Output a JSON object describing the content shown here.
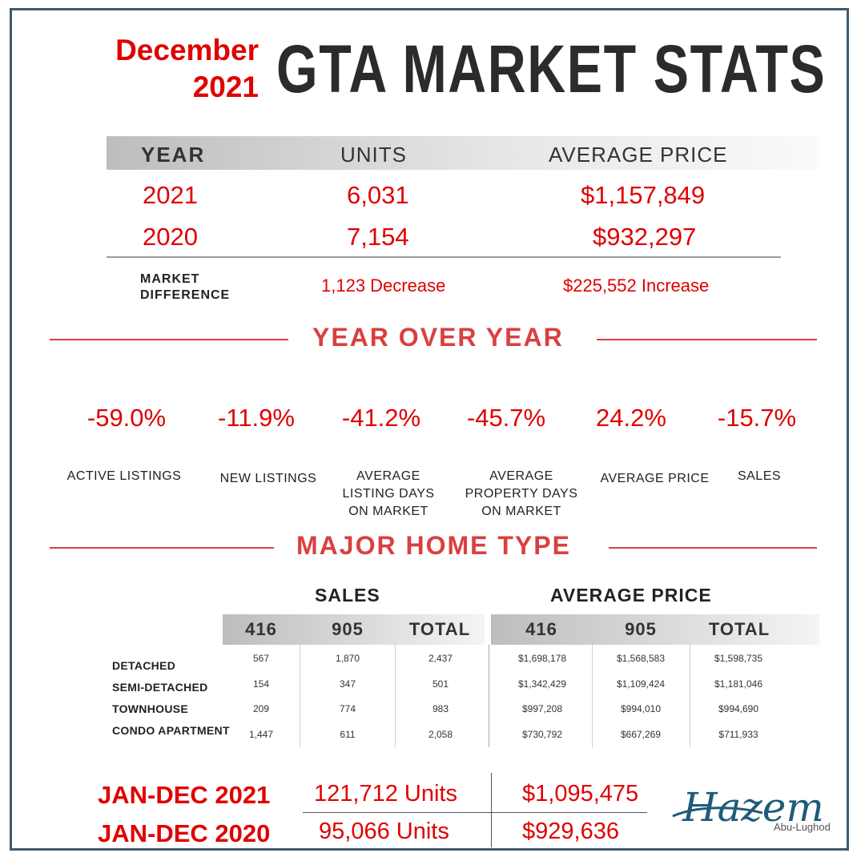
{
  "header": {
    "month": "December",
    "year": "2021",
    "title": "GTA MARKET STATS"
  },
  "summary": {
    "headers": [
      "YEAR",
      "UNITS",
      "AVERAGE PRICE"
    ],
    "rows": [
      {
        "year": "2021",
        "units": "6,031",
        "price": "$1,157,849"
      },
      {
        "year": "2020",
        "units": "7,154",
        "price": "$932,297"
      }
    ],
    "difference": {
      "label_line1": "MARKET",
      "label_line2": "DIFFERENCE",
      "units": "1,123 Decrease",
      "price": "$225,552 Increase"
    }
  },
  "yoy": {
    "title": "YEAR OVER YEAR",
    "stats": [
      {
        "value": "-59.0%",
        "label": [
          "ACTIVE LISTINGS"
        ]
      },
      {
        "value": "-11.9%",
        "label": [
          "NEW LISTINGS"
        ]
      },
      {
        "value": "-41.2%",
        "label": [
          "AVERAGE",
          "LISTING DAYS",
          "ON MARKET"
        ]
      },
      {
        "value": "-45.7%",
        "label": [
          "AVERAGE",
          "PROPERTY DAYS",
          "ON MARKET"
        ]
      },
      {
        "value": "24.2%",
        "label": [
          "AVERAGE PRICE"
        ]
      },
      {
        "value": "-15.7%",
        "label": [
          "SALES"
        ]
      }
    ]
  },
  "home_type": {
    "title": "MAJOR HOME TYPE",
    "sales_title": "SALES",
    "price_title": "AVERAGE PRICE",
    "columns": [
      "416",
      "905",
      "TOTAL",
      "416",
      "905",
      "TOTAL"
    ],
    "rows": [
      {
        "type": "DETACHED",
        "values": [
          "567",
          "1,870",
          "2,437",
          "$1,698,178",
          "$1,568,583",
          "$1,598,735"
        ]
      },
      {
        "type": "SEMI-DETACHED",
        "values": [
          "154",
          "347",
          "501",
          "$1,342,429",
          "$1,109,424",
          "$1,181,046"
        ]
      },
      {
        "type": "TOWNHOUSE",
        "values": [
          "209",
          "774",
          "983",
          "$997,208",
          "$994,010",
          "$994,690"
        ]
      },
      {
        "type": "CONDO APARTMENT",
        "values": [
          "1,447",
          "611",
          "2,058",
          "$730,792",
          "$667,269",
          "$711,933"
        ]
      }
    ]
  },
  "footer": [
    {
      "label": "JAN-DEC 2021",
      "units": "121,712 Units",
      "price": "$1,095,475"
    },
    {
      "label": "JAN-DEC 2020",
      "units": "95,066 Units",
      "price": "$929,636"
    }
  ],
  "signature": {
    "name": "Hazem",
    "surname": "Abu-Lughod"
  },
  "colors": {
    "accent": "#e00000",
    "section": "#d94040",
    "frame": "#3d5a6e",
    "signature": "#1f5a7a"
  }
}
